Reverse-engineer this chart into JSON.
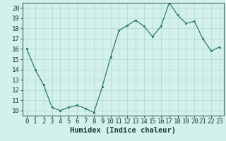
{
  "x": [
    0,
    1,
    2,
    3,
    4,
    5,
    6,
    7,
    8,
    9,
    10,
    11,
    12,
    13,
    14,
    15,
    16,
    17,
    18,
    19,
    20,
    21,
    22,
    23
  ],
  "y": [
    16,
    14,
    12.5,
    10.3,
    10,
    10.3,
    10.5,
    10.2,
    9.8,
    12.3,
    15.2,
    17.8,
    18.3,
    18.8,
    18.2,
    17.2,
    18.2,
    20.5,
    19.3,
    18.5,
    18.7,
    17.0,
    15.8,
    16.2
  ],
  "xlabel": "Humidex (Indice chaleur)",
  "xlim": [
    -0.5,
    23.5
  ],
  "ylim": [
    9.5,
    20.5
  ],
  "yticks": [
    10,
    11,
    12,
    13,
    14,
    15,
    16,
    17,
    18,
    19,
    20
  ],
  "xticks": [
    0,
    1,
    2,
    3,
    4,
    5,
    6,
    7,
    8,
    9,
    10,
    11,
    12,
    13,
    14,
    15,
    16,
    17,
    18,
    19,
    20,
    21,
    22,
    23
  ],
  "line_color": "#2d7a6a",
  "marker_color": "#2d7a6a",
  "bg_color": "#d4f0eb",
  "grid_color": "#aad8cc",
  "tick_label_fontsize": 6.5,
  "xlabel_fontsize": 7.5
}
